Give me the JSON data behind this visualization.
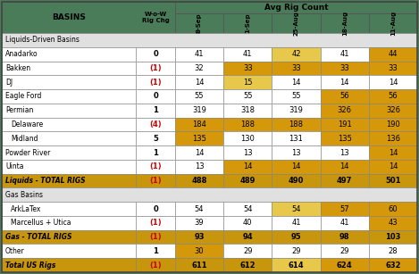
{
  "title_main": "Avg Rig Count",
  "col_header_basins": "BASINS",
  "col_header_wow": "W-o-W\nRig Chg",
  "col_headers": [
    "8-Sep",
    "1-Sep",
    "25-Aug",
    "18-Aug",
    "11-Aug"
  ],
  "rows": [
    {
      "name": "Liquids-Driven Basins",
      "type": "section_header",
      "wow": null,
      "values": [
        null,
        null,
        null,
        null,
        null
      ]
    },
    {
      "name": "Anadarko",
      "type": "data",
      "wow": "0",
      "values": [
        41,
        41,
        42,
        41,
        44
      ]
    },
    {
      "name": "Bakken",
      "type": "data",
      "wow": "(1)",
      "values": [
        32,
        33,
        33,
        33,
        33
      ]
    },
    {
      "name": "DJ",
      "type": "data",
      "wow": "(1)",
      "values": [
        14,
        15,
        14,
        14,
        14
      ]
    },
    {
      "name": "Eagle Ford",
      "type": "data",
      "wow": "0",
      "values": [
        55,
        55,
        55,
        56,
        56
      ]
    },
    {
      "name": "Permian",
      "type": "data",
      "wow": "1",
      "values": [
        319,
        318,
        319,
        326,
        326
      ]
    },
    {
      "name": "Delaware",
      "type": "sub",
      "wow": "(4)",
      "values": [
        184,
        188,
        188,
        191,
        190
      ]
    },
    {
      "name": "Midland",
      "type": "sub",
      "wow": "5",
      "values": [
        135,
        130,
        131,
        135,
        136
      ]
    },
    {
      "name": "Powder River",
      "type": "data",
      "wow": "1",
      "values": [
        14,
        13,
        13,
        13,
        14
      ]
    },
    {
      "name": "Uinta",
      "type": "data",
      "wow": "(1)",
      "values": [
        13,
        14,
        14,
        14,
        14
      ]
    },
    {
      "name": "Liquids - TOTAL RIGS",
      "type": "total",
      "wow": "(1)",
      "values": [
        488,
        489,
        490,
        497,
        501
      ]
    },
    {
      "name": "Gas Basins",
      "type": "section_header",
      "wow": null,
      "values": [
        null,
        null,
        null,
        null,
        null
      ]
    },
    {
      "name": "ArkLaTex",
      "type": "sub",
      "wow": "0",
      "values": [
        54,
        54,
        54,
        57,
        60
      ]
    },
    {
      "name": "Marcellus + Utica",
      "type": "sub",
      "wow": "(1)",
      "values": [
        39,
        40,
        41,
        41,
        43
      ]
    },
    {
      "name": "Gas - TOTAL RIGS",
      "type": "total",
      "wow": "(1)",
      "values": [
        93,
        94,
        95,
        98,
        103
      ]
    },
    {
      "name": "Other",
      "type": "data",
      "wow": "1",
      "values": [
        30,
        29,
        29,
        29,
        28
      ]
    },
    {
      "name": "Total US Rigs",
      "type": "grand_total",
      "wow": "(1)",
      "values": [
        611,
        612,
        614,
        624,
        632
      ]
    }
  ],
  "colors": {
    "header_bg": "#4a7c59",
    "section_bg": "#e0e0e0",
    "total_bg": "#c8960c",
    "grand_total_bg": "#c8960c",
    "white": "#ffffff",
    "light_gold": "#e8c84a",
    "gold": "#d4980a",
    "wow_red": "#cc0000",
    "wow_black": "#000000",
    "border_dark": "#666666",
    "border_light": "#aaaaaa"
  },
  "cell_colors": [
    [
      null,
      null,
      null,
      null,
      null
    ],
    [
      "white",
      "white",
      "light_gold",
      "white",
      "gold"
    ],
    [
      "white",
      "gold",
      "gold",
      "gold",
      "gold"
    ],
    [
      "white",
      "light_gold",
      "white",
      "white",
      "white"
    ],
    [
      "white",
      "white",
      "white",
      "gold",
      "gold"
    ],
    [
      "white",
      "white",
      "white",
      "gold",
      "gold"
    ],
    [
      "gold",
      "gold",
      "gold",
      "gold",
      "gold"
    ],
    [
      "gold",
      "white",
      "white",
      "gold",
      "gold"
    ],
    [
      "white",
      "white",
      "white",
      "white",
      "gold"
    ],
    [
      "white",
      "gold",
      "gold",
      "gold",
      "gold"
    ],
    [
      "total",
      "total",
      "total",
      "total",
      "total"
    ],
    [
      null,
      null,
      null,
      null,
      null
    ],
    [
      "white",
      "white",
      "light_gold",
      "gold",
      "gold"
    ],
    [
      "white",
      "white",
      "white",
      "white",
      "gold"
    ],
    [
      "total",
      "total",
      "total",
      "total",
      "total"
    ],
    [
      "gold",
      "white",
      "white",
      "white",
      "white"
    ],
    [
      "grand",
      "grand",
      "light_gold",
      "gold",
      "gold"
    ]
  ],
  "figsize": [
    4.69,
    3.07
  ],
  "dpi": 100
}
